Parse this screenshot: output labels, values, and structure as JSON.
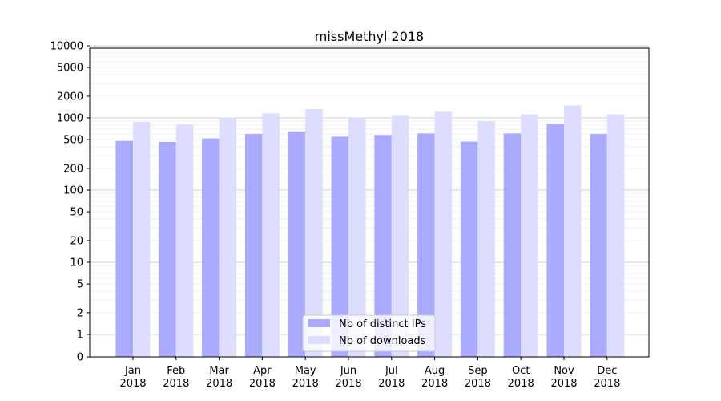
{
  "chart_data": {
    "type": "bar",
    "title": "missMethyl 2018",
    "xlabel": "",
    "ylabel": "",
    "y_scale": "symlog",
    "ylim": [
      0,
      13000
    ],
    "y_ticks": [
      "0",
      "1",
      "2",
      "5",
      "10",
      "20",
      "50",
      "100",
      "200",
      "500",
      "1000",
      "2000",
      "5000",
      "10000"
    ],
    "y_tick_values": [
      0,
      1,
      2,
      5,
      10,
      20,
      50,
      100,
      200,
      500,
      1000,
      2000,
      5000,
      10000
    ],
    "grid": true,
    "legend_position": "bottom-center",
    "categories": [
      [
        "Jan",
        "2018"
      ],
      [
        "Feb",
        "2018"
      ],
      [
        "Mar",
        "2018"
      ],
      [
        "Apr",
        "2018"
      ],
      [
        "May",
        "2018"
      ],
      [
        "Jun",
        "2018"
      ],
      [
        "Jul",
        "2018"
      ],
      [
        "Aug",
        "2018"
      ],
      [
        "Sep",
        "2018"
      ],
      [
        "Oct",
        "2018"
      ],
      [
        "Nov",
        "2018"
      ],
      [
        "Dec",
        "2018"
      ]
    ],
    "series": [
      {
        "name": "Nb of distinct IPs",
        "color": "#aaaaff",
        "values": [
          480,
          465,
          520,
          600,
          650,
          550,
          580,
          610,
          470,
          610,
          830,
          600
        ]
      },
      {
        "name": "Nb of downloads",
        "color": "#ddddff",
        "values": [
          880,
          820,
          1010,
          1160,
          1320,
          1010,
          1070,
          1220,
          900,
          1120,
          1490,
          1120
        ]
      }
    ]
  }
}
